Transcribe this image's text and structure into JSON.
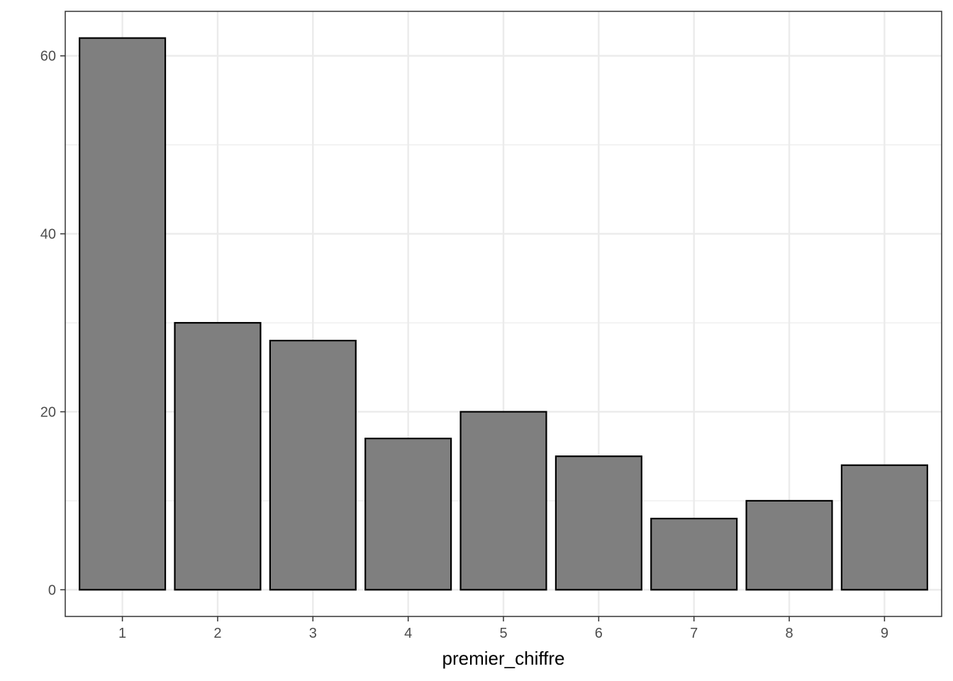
{
  "chart_data": {
    "type": "bar",
    "title": "",
    "xlabel": "premier_chiffre",
    "ylabel": "",
    "categories": [
      "1",
      "2",
      "3",
      "4",
      "5",
      "6",
      "7",
      "8",
      "9"
    ],
    "values": [
      62,
      30,
      28,
      17,
      20,
      15,
      8,
      10,
      14
    ],
    "ylim": [
      -3,
      65
    ],
    "yticks": [
      0,
      20,
      40,
      60
    ],
    "yminor": [
      10,
      30,
      50
    ],
    "grid": true,
    "bar_fill": "#7f7f7f",
    "bar_stroke": "#000000",
    "grid_color": "#ebebeb",
    "panel_border_color": "#333333"
  }
}
